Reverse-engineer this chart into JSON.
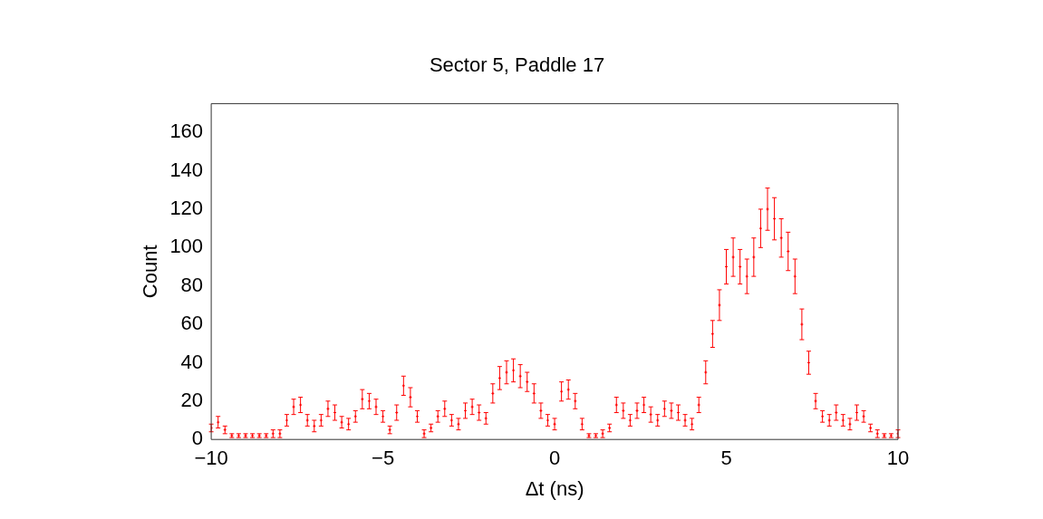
{
  "chart_data": {
    "type": "scatter",
    "title": "Sector 5, Paddle 17",
    "xlabel": "Δt (ns)",
    "ylabel": "Count",
    "x": [
      -10,
      -9.8,
      -9.6,
      -9.4,
      -9.2,
      -9,
      -8.8,
      -8.6,
      -8.4,
      -8.2,
      -8,
      -7.8,
      -7.6,
      -7.4,
      -7.2,
      -7,
      -6.8,
      -6.6,
      -6.4,
      -6.2,
      -6,
      -5.8,
      -5.6,
      -5.4,
      -5.2,
      -5,
      -4.8,
      -4.6,
      -4.4,
      -4.2,
      -4,
      -3.8,
      -3.6,
      -3.4,
      -3.2,
      -3,
      -2.8,
      -2.6,
      -2.4,
      -2.2,
      -2,
      -1.8,
      -1.6,
      -1.4,
      -1.2,
      -1,
      -0.8,
      -0.6,
      -0.4,
      -0.2,
      0,
      0.2,
      0.4,
      0.6,
      0.8,
      1,
      1.2,
      1.4,
      1.6,
      1.8,
      2,
      2.2,
      2.4,
      2.6,
      2.8,
      3,
      3.2,
      3.4,
      3.6,
      3.8,
      4,
      4.2,
      4.4,
      4.6,
      4.8,
      5,
      5.2,
      5.4,
      5.6,
      5.8,
      6,
      6.2,
      6.4,
      6.6,
      6.8,
      7,
      7.2,
      7.4,
      7.6,
      7.8,
      8,
      8.2,
      8.4,
      8.6,
      8.8,
      9,
      9.2,
      9.4,
      9.6,
      9.8,
      10
    ],
    "series": [
      {
        "color": "#ff0000",
        "values": [
          6,
          9,
          5,
          2,
          2,
          2,
          2,
          2,
          2,
          3,
          3,
          10,
          17,
          18,
          10,
          7,
          10,
          16,
          14,
          9,
          8,
          12,
          21,
          20,
          17,
          12,
          5,
          14,
          28,
          22,
          12,
          3,
          6,
          12,
          16,
          10,
          8,
          15,
          17,
          14,
          11,
          24,
          32,
          35,
          36,
          33,
          30,
          24,
          15,
          10,
          8,
          25,
          26,
          20,
          8,
          2,
          2,
          3,
          6,
          18,
          15,
          10,
          15,
          18,
          13,
          10,
          16,
          15,
          14,
          10,
          8,
          18,
          35,
          55,
          70,
          90,
          95,
          90,
          85,
          95,
          110,
          120,
          115,
          105,
          98,
          85,
          60,
          40,
          20,
          12,
          10,
          14,
          10,
          8,
          14,
          12,
          6,
          3,
          2,
          2,
          3
        ],
        "errors": [
          2,
          3,
          2,
          1,
          1,
          1,
          1,
          1,
          1,
          2,
          2,
          3,
          4,
          4,
          3,
          3,
          3,
          4,
          4,
          3,
          3,
          3,
          5,
          4,
          4,
          3,
          2,
          4,
          5,
          5,
          3,
          2,
          2,
          3,
          4,
          3,
          3,
          4,
          4,
          4,
          3,
          5,
          6,
          6,
          6,
          6,
          5,
          5,
          4,
          3,
          3,
          5,
          5,
          4,
          3,
          1,
          1,
          2,
          2,
          4,
          4,
          3,
          4,
          4,
          4,
          3,
          4,
          4,
          4,
          3,
          3,
          4,
          6,
          7,
          8,
          9,
          10,
          9,
          9,
          10,
          10,
          11,
          11,
          10,
          10,
          9,
          8,
          6,
          4,
          3,
          3,
          4,
          3,
          3,
          4,
          3,
          2,
          2,
          1,
          1,
          2
        ]
      }
    ],
    "xlim": [
      -10,
      10
    ],
    "xticks": [
      {
        "value": -10,
        "label": "−10"
      },
      {
        "value": -5,
        "label": "−5"
      },
      0,
      5,
      10
    ],
    "ylim": [
      0,
      175
    ],
    "yticks": [
      0,
      20,
      40,
      60,
      80,
      100,
      120,
      140,
      160
    ],
    "grid": false,
    "marker": "cross",
    "legend": false
  }
}
